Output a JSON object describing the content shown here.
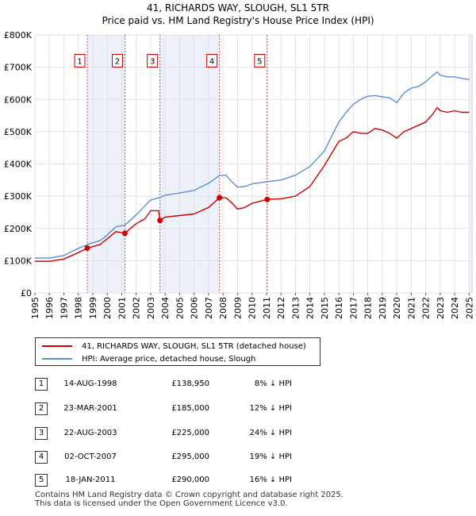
{
  "chart_data": {
    "type": "line",
    "title": "41, RICHARDS WAY, SLOUGH, SL1 5TR",
    "subtitle": "Price paid vs. HM Land Registry's House Price Index (HPI)",
    "xlim": [
      1995,
      2025.2
    ],
    "ylim": [
      0,
      800000
    ],
    "x_ticks": [
      1995,
      1996,
      1997,
      1998,
      1999,
      2000,
      2001,
      2002,
      2003,
      2004,
      2005,
      2006,
      2007,
      2008,
      2009,
      2010,
      2011,
      2012,
      2013,
      2014,
      2015,
      2016,
      2017,
      2018,
      2019,
      2020,
      2021,
      2022,
      2023,
      2024,
      2025
    ],
    "y_ticks": [
      {
        "value": 0,
        "label": "£0"
      },
      {
        "value": 100000,
        "label": "£100K"
      },
      {
        "value": 200000,
        "label": "£200K"
      },
      {
        "value": 300000,
        "label": "£300K"
      },
      {
        "value": 400000,
        "label": "£400K"
      },
      {
        "value": 500000,
        "label": "£500K"
      },
      {
        "value": 600000,
        "label": "£600K"
      },
      {
        "value": 700000,
        "label": "£700K"
      },
      {
        "value": 800000,
        "label": "£800K"
      }
    ],
    "grid": true,
    "series": [
      {
        "name": "41, RICHARDS WAY, SLOUGH, SL1 5TR (detached house)",
        "color": "#cc0000",
        "points": [
          [
            1995.0,
            98000
          ],
          [
            1996.0,
            98000
          ],
          [
            1997.0,
            105000
          ],
          [
            1998.0,
            125000
          ],
          [
            1998.62,
            138950
          ],
          [
            1999.5,
            150000
          ],
          [
            2000.0,
            168000
          ],
          [
            2000.6,
            190000
          ],
          [
            2001.22,
            185000
          ],
          [
            2001.6,
            200000
          ],
          [
            2002.0,
            215000
          ],
          [
            2002.6,
            230000
          ],
          [
            2003.0,
            255000
          ],
          [
            2003.55,
            255000
          ],
          [
            2003.64,
            225000
          ],
          [
            2004.0,
            235000
          ],
          [
            2005.0,
            240000
          ],
          [
            2006.0,
            245000
          ],
          [
            2007.0,
            265000
          ],
          [
            2007.75,
            295000
          ],
          [
            2008.2,
            295000
          ],
          [
            2008.6,
            280000
          ],
          [
            2009.0,
            260000
          ],
          [
            2009.5,
            265000
          ],
          [
            2010.0,
            278000
          ],
          [
            2011.05,
            290000
          ],
          [
            2012.0,
            292000
          ],
          [
            2013.0,
            300000
          ],
          [
            2014.0,
            330000
          ],
          [
            2015.0,
            395000
          ],
          [
            2016.0,
            470000
          ],
          [
            2016.5,
            480000
          ],
          [
            2017.0,
            500000
          ],
          [
            2017.5,
            495000
          ],
          [
            2018.0,
            495000
          ],
          [
            2018.5,
            510000
          ],
          [
            2019.0,
            505000
          ],
          [
            2019.5,
            495000
          ],
          [
            2020.0,
            480000
          ],
          [
            2020.5,
            500000
          ],
          [
            2021.0,
            510000
          ],
          [
            2021.5,
            520000
          ],
          [
            2022.0,
            530000
          ],
          [
            2022.5,
            555000
          ],
          [
            2022.8,
            575000
          ],
          [
            2023.0,
            565000
          ],
          [
            2023.5,
            560000
          ],
          [
            2024.0,
            565000
          ],
          [
            2024.5,
            560000
          ],
          [
            2025.0,
            560000
          ]
        ]
      },
      {
        "name": "HPI: Average price, detached house, Slough",
        "color": "#5b8fd6",
        "points": [
          [
            1995.0,
            108000
          ],
          [
            1996.0,
            108000
          ],
          [
            1997.0,
            116000
          ],
          [
            1998.0,
            138000
          ],
          [
            1998.62,
            150000
          ],
          [
            1999.5,
            162000
          ],
          [
            2000.0,
            180000
          ],
          [
            2000.6,
            205000
          ],
          [
            2001.22,
            210000
          ],
          [
            2002.0,
            242000
          ],
          [
            2002.6,
            270000
          ],
          [
            2003.0,
            288000
          ],
          [
            2003.64,
            296000
          ],
          [
            2004.0,
            303000
          ],
          [
            2005.0,
            310000
          ],
          [
            2006.0,
            318000
          ],
          [
            2007.0,
            340000
          ],
          [
            2007.75,
            364000
          ],
          [
            2008.2,
            365000
          ],
          [
            2008.6,
            345000
          ],
          [
            2009.0,
            328000
          ],
          [
            2009.5,
            330000
          ],
          [
            2010.0,
            338000
          ],
          [
            2011.05,
            345000
          ],
          [
            2012.0,
            350000
          ],
          [
            2013.0,
            365000
          ],
          [
            2014.0,
            392000
          ],
          [
            2015.0,
            440000
          ],
          [
            2016.0,
            530000
          ],
          [
            2016.5,
            560000
          ],
          [
            2017.0,
            585000
          ],
          [
            2017.5,
            600000
          ],
          [
            2018.0,
            610000
          ],
          [
            2018.5,
            612000
          ],
          [
            2019.0,
            608000
          ],
          [
            2019.5,
            605000
          ],
          [
            2020.0,
            590000
          ],
          [
            2020.5,
            620000
          ],
          [
            2021.0,
            635000
          ],
          [
            2021.5,
            640000
          ],
          [
            2022.0,
            655000
          ],
          [
            2022.5,
            675000
          ],
          [
            2022.8,
            685000
          ],
          [
            2023.0,
            675000
          ],
          [
            2023.5,
            670000
          ],
          [
            2024.0,
            670000
          ],
          [
            2024.5,
            665000
          ],
          [
            2025.0,
            662000
          ]
        ]
      }
    ],
    "sales": [
      {
        "num": "1",
        "x": 1998.62,
        "value": 138950
      },
      {
        "num": "2",
        "x": 2001.22,
        "value": 185000
      },
      {
        "num": "3",
        "x": 2003.64,
        "value": 225000
      },
      {
        "num": "4",
        "x": 2007.75,
        "value": 295000
      },
      {
        "num": "5",
        "x": 2011.05,
        "value": 290000
      }
    ],
    "shaded_ranges": [
      [
        1998.62,
        2001.22
      ],
      [
        2003.64,
        2007.75
      ],
      [
        2011.05,
        2011.05
      ],
      [
        2025.0,
        2025.2
      ]
    ],
    "marker_label_value": 720000
  },
  "legend": {
    "property_label": "41, RICHARDS WAY, SLOUGH, SL1 5TR (detached house)",
    "hpi_label": "HPI: Average price, detached house, Slough"
  },
  "transactions": [
    {
      "num": "1",
      "date": "14-AUG-1998",
      "price": "£138,950",
      "hpi": "8% ↓ HPI"
    },
    {
      "num": "2",
      "date": "23-MAR-2001",
      "price": "£185,000",
      "hpi": "12% ↓ HPI"
    },
    {
      "num": "3",
      "date": "22-AUG-2003",
      "price": "£225,000",
      "hpi": "24% ↓ HPI"
    },
    {
      "num": "4",
      "date": "02-OCT-2007",
      "price": "£295,000",
      "hpi": "19% ↓ HPI"
    },
    {
      "num": "5",
      "date": "18-JAN-2011",
      "price": "£290,000",
      "hpi": "16% ↓ HPI"
    }
  ],
  "footer": {
    "line1": "Contains HM Land Registry data © Crown copyright and database right 2025.",
    "line2": "This data is licensed under the Open Government Licence v3.0."
  }
}
